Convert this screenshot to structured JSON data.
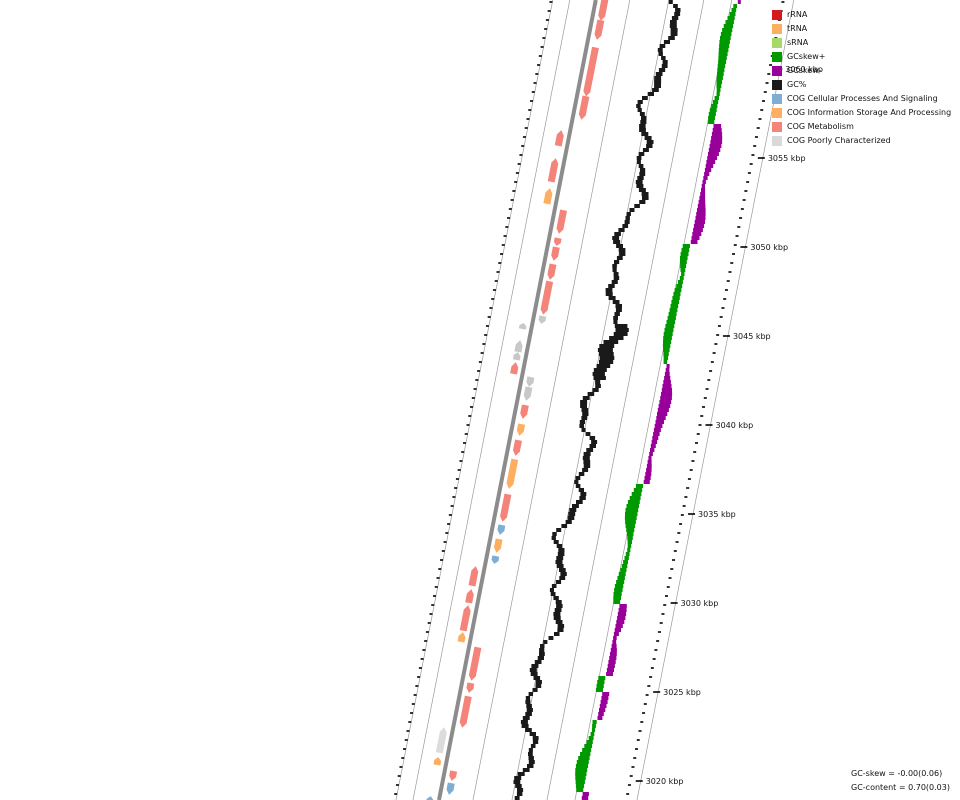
{
  "legend": {
    "items": [
      {
        "label": "rRNA",
        "color": "#d7191c"
      },
      {
        "label": "tRNA",
        "color": "#fdae61"
      },
      {
        "label": "sRNA",
        "color": "#a6d96a"
      },
      {
        "label": "GCskew+",
        "color": "#009900"
      },
      {
        "label": "GCskew-",
        "color": "#990099"
      },
      {
        "label": "GC%",
        "color": "#1a1a1a"
      },
      {
        "label": "COG Cellular Processes And Signaling",
        "color": "#7fadd3"
      },
      {
        "label": "COG Information Storage And Processing",
        "color": "#fdae61"
      },
      {
        "label": "COG Metabolism",
        "color": "#f4837a"
      },
      {
        "label": "COG Poorly Characterized",
        "color": "#d9d9d9"
      }
    ]
  },
  "scale": {
    "ticks": [
      {
        "kbp": 3060,
        "label": "3060 kbp"
      },
      {
        "kbp": 3055,
        "label": "3055 kbp"
      },
      {
        "kbp": 3050,
        "label": "3050 kbp"
      },
      {
        "kbp": 3045,
        "label": "3045 kbp"
      },
      {
        "kbp": 3040,
        "label": "3040 kbp"
      },
      {
        "kbp": 3035,
        "label": "3035 kbp"
      },
      {
        "kbp": 3030,
        "label": "3030 kbp"
      },
      {
        "kbp": 3025,
        "label": "3025 kbp"
      },
      {
        "kbp": 3020,
        "label": "3020 kbp"
      }
    ]
  },
  "stats": {
    "gc_skew": "GC-skew = -0.00(0.06)",
    "gc_content": "GC-content = 0.70(0.03)"
  }
}
